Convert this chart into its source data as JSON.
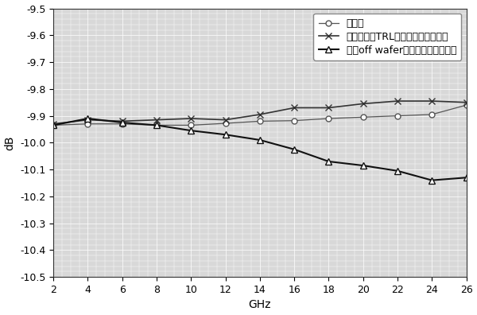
{
  "xlabel": "GHz",
  "ylabel": "dB",
  "xlim": [
    2,
    26
  ],
  "ylim": [
    -10.5,
    -9.5
  ],
  "yticks": [
    -10.5,
    -10.4,
    -10.3,
    -10.2,
    -10.1,
    -10.0,
    -9.9,
    -9.8,
    -9.7,
    -9.6,
    -9.5
  ],
  "xticks": [
    2,
    4,
    6,
    8,
    10,
    12,
    14,
    16,
    18,
    20,
    22,
    24,
    26
  ],
  "plot_bg": "#d8d8d8",
  "fig_bg": "#ffffff",
  "grid_color": "#ffffff",
  "series": [
    {
      "label": "仿真值",
      "marker": "o",
      "color": "#555555",
      "linewidth": 0.9,
      "markersize": 5,
      "markerfacecolor": "white",
      "x": [
        2,
        4,
        6,
        8,
        10,
        12,
        14,
        16,
        18,
        20,
        22,
        24,
        26
      ],
      "y": [
        -9.935,
        -9.93,
        -9.93,
        -9.935,
        -9.935,
        -9.928,
        -9.92,
        -9.918,
        -9.91,
        -9.905,
        -9.9,
        -9.895,
        -9.86
      ]
    },
    {
      "label": "利用本专利TRL校准件校准后测试值",
      "marker": "x",
      "color": "#333333",
      "linewidth": 1.2,
      "markersize": 6,
      "markerfacecolor": "#333333",
      "x": [
        2,
        4,
        6,
        8,
        10,
        12,
        14,
        16,
        18,
        20,
        22,
        24,
        26
      ],
      "y": [
        -9.93,
        -9.915,
        -9.92,
        -9.915,
        -9.91,
        -9.915,
        -9.895,
        -9.87,
        -9.87,
        -9.855,
        -9.845,
        -9.845,
        -9.85
      ]
    },
    {
      "label": "利用off wafer校准件校准后测试值",
      "marker": "^",
      "color": "#111111",
      "linewidth": 1.5,
      "markersize": 6,
      "markerfacecolor": "white",
      "x": [
        2,
        4,
        6,
        8,
        10,
        12,
        14,
        16,
        18,
        20,
        22,
        24,
        26
      ],
      "y": [
        -9.935,
        -9.91,
        -9.925,
        -9.935,
        -9.955,
        -9.97,
        -9.99,
        -10.025,
        -10.07,
        -10.085,
        -10.105,
        -10.14,
        -10.13
      ]
    }
  ],
  "legend_loc": "upper right",
  "legend_fontsize": 9,
  "tick_fontsize": 9,
  "label_fontsize": 10,
  "figsize": [
    6.0,
    3.96
  ],
  "dpi": 100
}
